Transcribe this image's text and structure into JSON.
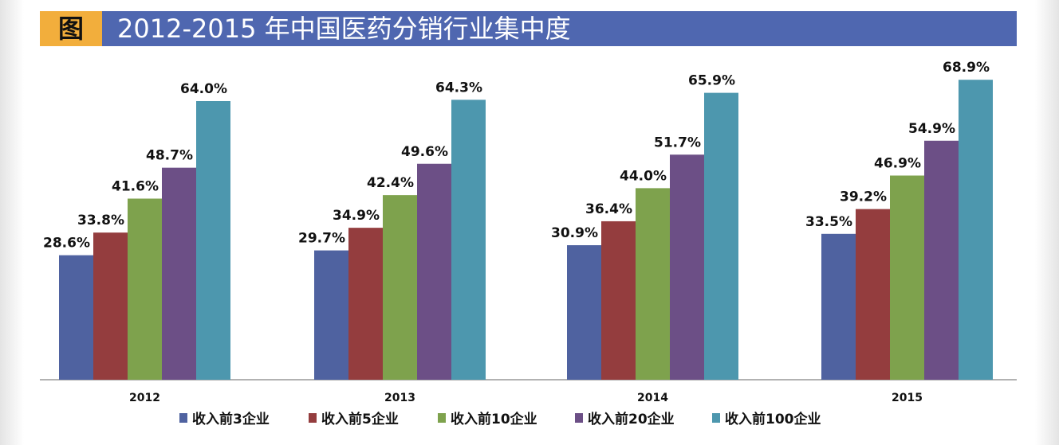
{
  "header": {
    "tag": "图",
    "title": "2012-2015 年中国医药分销行业集中度"
  },
  "chart_data": {
    "type": "bar",
    "title": "2012-2015 年中国医药分销行业集中度",
    "categories": [
      "2012",
      "2013",
      "2014",
      "2015"
    ],
    "series": [
      {
        "name": "收入前3企业",
        "values": [
          28.6,
          29.7,
          30.9,
          33.5
        ],
        "color": "#4f62a0"
      },
      {
        "name": "收入前5企业",
        "values": [
          33.8,
          34.9,
          36.4,
          39.2
        ],
        "color": "#943d3e"
      },
      {
        "name": "收入前10企业",
        "values": [
          41.6,
          42.4,
          44.0,
          46.9
        ],
        "color": "#7ea24d"
      },
      {
        "name": "收入前20企业",
        "values": [
          48.7,
          49.6,
          51.7,
          54.9
        ],
        "color": "#6c4f86"
      },
      {
        "name": "收入前100企业",
        "values": [
          64.0,
          64.3,
          65.9,
          68.9
        ],
        "color": "#4d97ae"
      }
    ],
    "ylim": [
      0,
      70
    ],
    "value_format": "%",
    "grid": false,
    "legend": "bottom"
  }
}
